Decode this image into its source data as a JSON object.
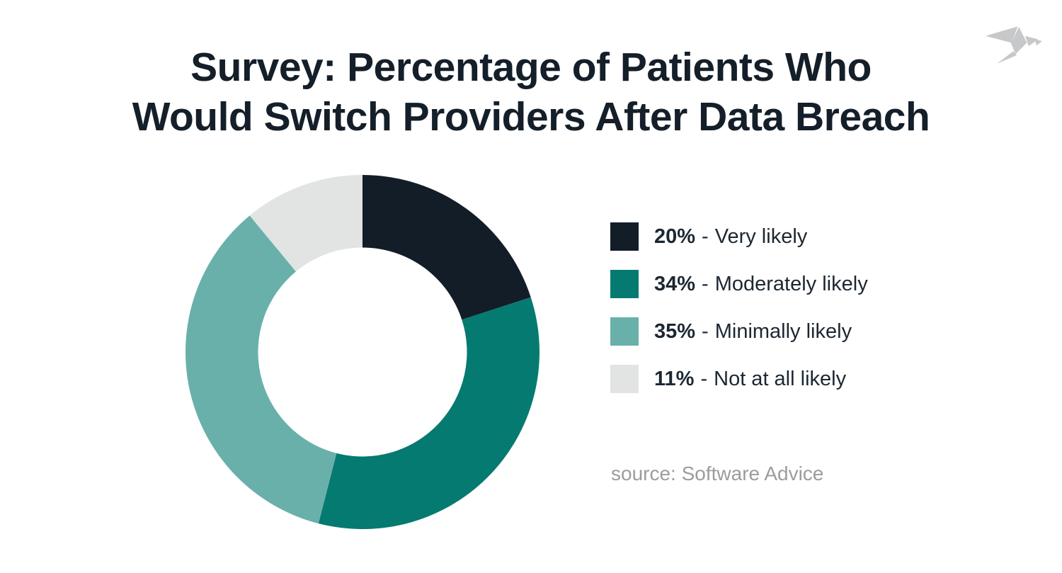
{
  "page": {
    "background": "#ffffff"
  },
  "header": {
    "title_line1": "Survey: Percentage of Patients Who",
    "title_line2": "Would Switch Providers After Data Breach",
    "title_color": "#141F29"
  },
  "logo": {
    "name": "origami-bird",
    "color": "#C6C8CA"
  },
  "chart_data": {
    "type": "pie",
    "subtype": "donut",
    "title": "Survey: Percentage of Patients Who Would Switch Providers After Data Breach",
    "categories": [
      "Very likely",
      "Moderately likely",
      "Minimally likely",
      "Not at all likely"
    ],
    "values": [
      20,
      34,
      35,
      11
    ],
    "unit": "%",
    "colors": [
      "#131D28",
      "#057A71",
      "#69B0AB",
      "#E2E3E3"
    ],
    "start_angle_deg": 0,
    "direction": "clockwise",
    "inner_radius_ratio": 0.59,
    "legend_position": "right",
    "data_labels": false
  },
  "legend": {
    "separator": "-",
    "items": [
      {
        "pct": "20%",
        "label": "Very likely",
        "color": "#131D28"
      },
      {
        "pct": "34%",
        "label": "Moderately likely",
        "color": "#057A71"
      },
      {
        "pct": "35%",
        "label": "Minimally likely",
        "color": "#69B0AB"
      },
      {
        "pct": "11%",
        "label": "Not at all likely",
        "color": "#E2E3E3"
      }
    ]
  },
  "source": {
    "text": "source: Software Advice"
  }
}
